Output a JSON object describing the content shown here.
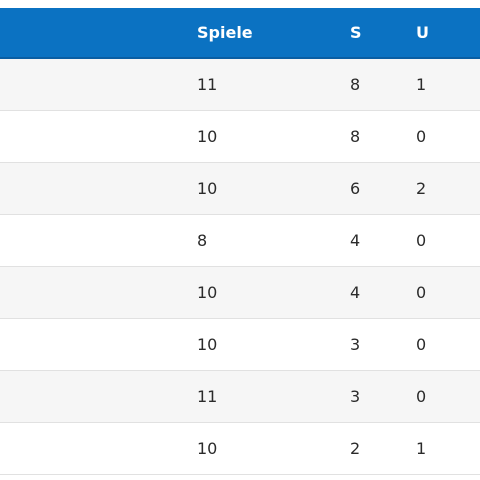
{
  "colors": {
    "header_bg": "#0b72c2",
    "header_text": "#ffffff",
    "row_alt": "#f6f6f6",
    "row": "#ffffff",
    "divider": "#e1e1e1",
    "text": "#2b2b2b"
  },
  "table": {
    "headers": {
      "spiele": "Spiele",
      "s": "S",
      "u": "U"
    },
    "rows": [
      {
        "spiele": "11",
        "s": "8",
        "u": "1"
      },
      {
        "spiele": "10",
        "s": "8",
        "u": "0"
      },
      {
        "spiele": "10",
        "s": "6",
        "u": "2"
      },
      {
        "spiele": "8",
        "s": "4",
        "u": "0"
      },
      {
        "spiele": "10",
        "s": "4",
        "u": "0"
      },
      {
        "spiele": "10",
        "s": "3",
        "u": "0"
      },
      {
        "spiele": "11",
        "s": "3",
        "u": "0"
      },
      {
        "spiele": "10",
        "s": "2",
        "u": "1"
      }
    ]
  }
}
